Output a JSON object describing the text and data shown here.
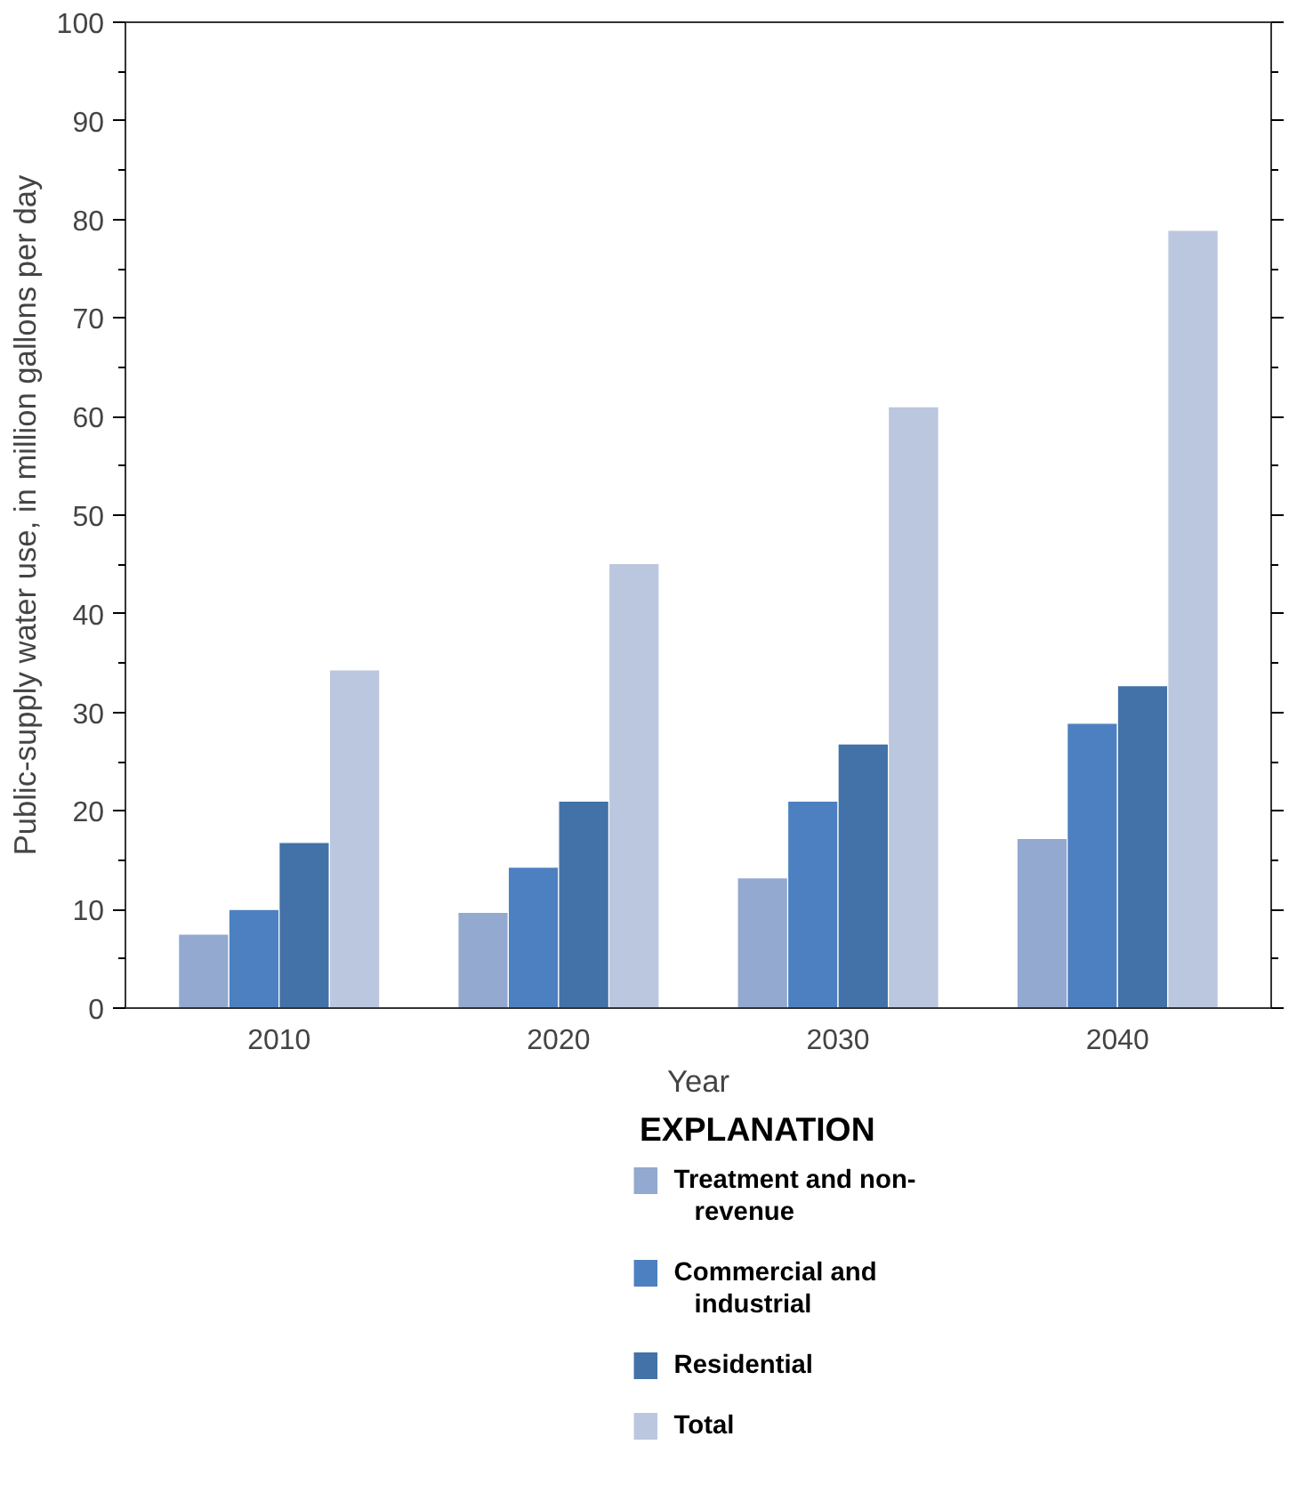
{
  "chart_data": {
    "type": "bar",
    "xlabel": "Year",
    "ylabel": "Public-supply water use, in million gallons per day",
    "legend_title": "EXPLANATION",
    "categories": [
      "2010",
      "2020",
      "2030",
      "2040"
    ],
    "series": [
      {
        "name": "Treatment and non-revenue",
        "color": "#93a9cf",
        "values": [
          7.5,
          9.7,
          13.2,
          17.2
        ]
      },
      {
        "name": "Commercial and industrial",
        "color": "#4d80c0",
        "values": [
          10,
          14.3,
          21,
          28.9
        ]
      },
      {
        "name": "Residential",
        "color": "#4272a7",
        "values": [
          16.8,
          21,
          26.8,
          32.7
        ]
      },
      {
        "name": "Total",
        "color": "#bbc7df",
        "values": [
          34.3,
          45.1,
          61,
          78.9
        ]
      }
    ],
    "ylim": [
      0,
      100
    ],
    "yticks": [
      0,
      10,
      20,
      30,
      40,
      50,
      60,
      70,
      80,
      90,
      100
    ],
    "grid": false,
    "legend": "bottom"
  }
}
